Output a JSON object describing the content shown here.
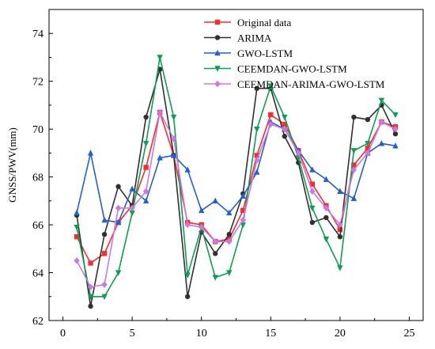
{
  "chart_data": {
    "type": "line",
    "title": "",
    "xlabel": "",
    "ylabel": "GNSS/PWV(mm)",
    "xlim": [
      -1,
      26
    ],
    "ylim": [
      62,
      75
    ],
    "xticks": [
      0,
      5,
      10,
      15,
      20,
      25
    ],
    "yticks": [
      62,
      64,
      66,
      68,
      70,
      72,
      74
    ],
    "legend_position": "top-right",
    "x": [
      1,
      2,
      3,
      4,
      5,
      6,
      7,
      8,
      9,
      10,
      11,
      12,
      13,
      14,
      15,
      16,
      17,
      18,
      19,
      20,
      21,
      22,
      23,
      24
    ],
    "series": [
      {
        "name": "Original data",
        "color": "#ff2a2a",
        "marker": "square",
        "values": [
          65.5,
          64.4,
          64.8,
          66.1,
          66.8,
          68.4,
          70.7,
          68.9,
          66.1,
          66.0,
          65.3,
          65.4,
          66.6,
          68.9,
          70.6,
          70.2,
          69.1,
          67.7,
          66.8,
          65.8,
          68.5,
          69.2,
          70.3,
          70.1
        ]
      },
      {
        "name": "ARIMA",
        "color": "#303030",
        "marker": "circle",
        "values": [
          66.4,
          62.6,
          65.6,
          67.6,
          66.8,
          70.5,
          72.5,
          68.9,
          63.0,
          65.7,
          64.8,
          65.6,
          67.3,
          71.7,
          71.7,
          69.7,
          68.6,
          66.1,
          66.3,
          65.5,
          70.5,
          70.4,
          71.0,
          69.8
        ]
      },
      {
        "name": "GWO-LSTM",
        "color": "#1f5fd8",
        "marker": "triangle-up",
        "values": [
          66.5,
          69.0,
          66.2,
          66.1,
          67.5,
          67.0,
          68.8,
          68.9,
          68.3,
          66.6,
          67.0,
          66.5,
          67.2,
          68.2,
          70.3,
          70.0,
          69.1,
          68.3,
          67.9,
          67.4,
          67.1,
          69.0,
          69.4,
          69.3
        ]
      },
      {
        "name": "CEEMDAN-GWO-LSTM",
        "color": "#0aa050",
        "marker": "triangle-down",
        "values": [
          65.9,
          63.0,
          63.0,
          64.0,
          66.5,
          69.4,
          73.0,
          70.5,
          63.9,
          65.9,
          63.8,
          64.0,
          66.0,
          70.0,
          71.8,
          70.5,
          68.8,
          66.7,
          65.4,
          64.2,
          69.1,
          69.4,
          71.2,
          70.6
        ]
      },
      {
        "name": "CEEMDAN-ARIMA-GWO-LSTM",
        "color": "#cc77e6",
        "marker": "diamond",
        "values": [
          64.5,
          63.4,
          63.5,
          66.7,
          66.7,
          67.4,
          70.7,
          69.6,
          66.0,
          65.9,
          65.3,
          65.3,
          66.2,
          68.7,
          70.2,
          70.0,
          69.0,
          67.4,
          66.7,
          66.0,
          68.3,
          69.0,
          70.3,
          70.0
        ]
      }
    ]
  }
}
